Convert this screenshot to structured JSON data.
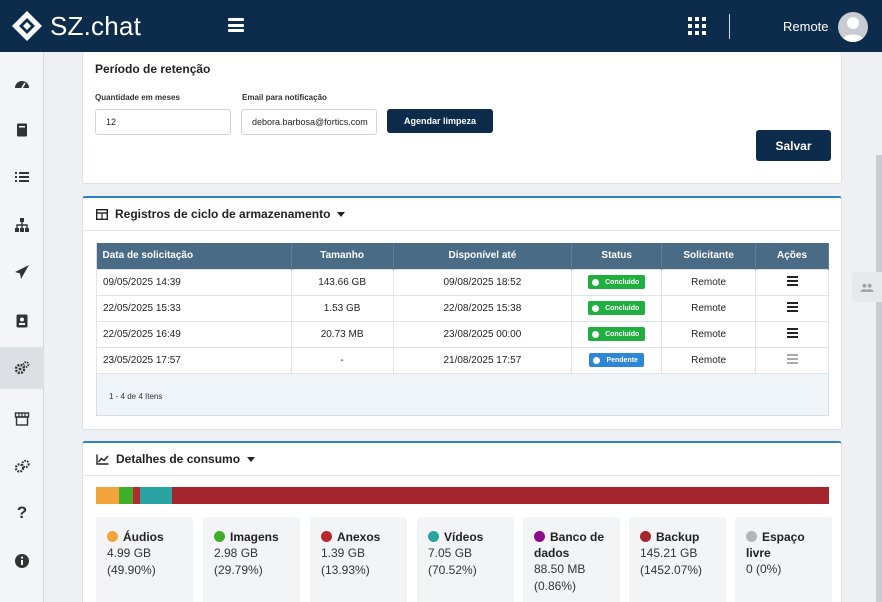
{
  "app": {
    "brand": "SZ.chat",
    "user": "Remote"
  },
  "retention": {
    "title": "Período de retenção",
    "months_label": "Quantidade em meses",
    "months_value": "12",
    "email_label": "Email para notificação",
    "email_value": "debora.barbosa@fortics.com",
    "schedule_button": "Agendar limpeza",
    "save_button": "Salvar"
  },
  "registry": {
    "title": "Registros de ciclo de armazenamento",
    "columns": [
      "Data de solicitação",
      "Tamanho",
      "Disponível até",
      "Status",
      "Solicitante",
      "Ações"
    ],
    "rows": [
      {
        "date": "09/05/2025 14:39",
        "size": "143.66 GB",
        "available": "09/08/2025 18:52",
        "status": "Concluído",
        "requester": "Remote"
      },
      {
        "date": "22/05/2025 15:33",
        "size": "1.53 GB",
        "available": "22/08/2025 15:38",
        "status": "Concluído",
        "requester": "Remote"
      },
      {
        "date": "22/05/2025 16:49",
        "size": "20.73 MB",
        "available": "23/08/2025 00:00",
        "status": "Concluído",
        "requester": "Remote"
      },
      {
        "date": "23/05/2025 17:57",
        "size": "-",
        "available": "21/08/2025 17:57",
        "status": "Pendente",
        "requester": "Remote"
      }
    ],
    "pager": "1 - 4 de 4 Itens"
  },
  "consumption": {
    "title": "Detalhes de consumo",
    "bar_segments": [
      {
        "name": "Áudios",
        "fraction": 0.031,
        "color": "#f3a43b"
      },
      {
        "name": "Imagens",
        "fraction": 0.019,
        "color": "#3fae2a"
      },
      {
        "name": "Anexos",
        "fraction": 0.009,
        "color": "#b4282e"
      },
      {
        "name": "Vídeos",
        "fraction": 0.044,
        "color": "#2aa3a3"
      },
      {
        "name": "Backup",
        "fraction": 0.897,
        "color": "#a4262c"
      }
    ],
    "tiles": [
      {
        "name": "Áudios",
        "size": "4.99 GB",
        "pct": "(49.90%)",
        "color": "#f3a43b"
      },
      {
        "name": "Imagens",
        "size": "2.98 GB",
        "pct": "(29.79%)",
        "color": "#3fae2a"
      },
      {
        "name": "Anexos",
        "size": "1.39 GB",
        "pct": "(13.93%)",
        "color": "#b4282e"
      },
      {
        "name": "Vídeos",
        "size": "7.05 GB",
        "pct": "(70.52%)",
        "color": "#2aa3a3"
      },
      {
        "name": "Banco de dados",
        "size": "88.50 MB",
        "pct": "(0.86%)",
        "color": "#8a0a8a"
      },
      {
        "name": "Backup",
        "size": "145.21 GB",
        "pct": "(1452.07%)",
        "color": "#a4262c"
      },
      {
        "name": "Espaço livre",
        "size": "0 (0%)",
        "pct": "",
        "color": "#b5b5b5"
      }
    ]
  },
  "sidebar": {
    "icons": [
      "dashboard-icon",
      "book-icon",
      "list-icon",
      "sitemap-icon",
      "send-icon",
      "contacts-icon",
      "gears-icon",
      "store-icon",
      "cogs-icon",
      "help-icon",
      "info-icon"
    ],
    "active": "gears-icon"
  },
  "colors": {
    "topbar": "#0d2c4c",
    "accent": "#2f80c9",
    "table_header": "#4a6b86"
  }
}
